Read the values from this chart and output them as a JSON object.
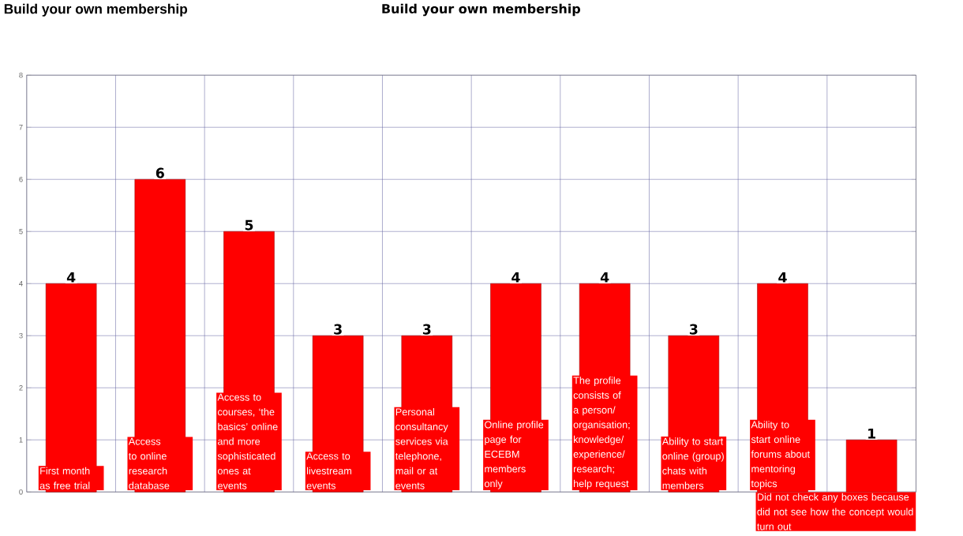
{
  "chart_data": {
    "type": "bar",
    "title": "Build your own membership",
    "annotations": [
      "Build your own membership"
    ],
    "categories": [
      "First month as free trial",
      "Access to online research database",
      "Access to courses, ‘the basics’ online and more sophisticated ones at events",
      "Access to livestream events",
      "Personal consultancy services via telephone, mail or at events",
      "Online profile page for ECEBM members only",
      "The profile consists of a person/ organisation; knowledge/ experience/ research; help request",
      "Ability to start online (group) chats with members",
      "Ability to start online forums about mentoring topics",
      "Did not check any boxes because did not see how the concept would turn out"
    ],
    "values": [
      4,
      6,
      5,
      3,
      3,
      4,
      4,
      3,
      4,
      1
    ],
    "color": "#ff0000",
    "ylim": [
      0,
      8
    ],
    "yticks": [
      0,
      1,
      2,
      3,
      4,
      5,
      6,
      7,
      8
    ],
    "grid": true,
    "data_labels": true
  }
}
